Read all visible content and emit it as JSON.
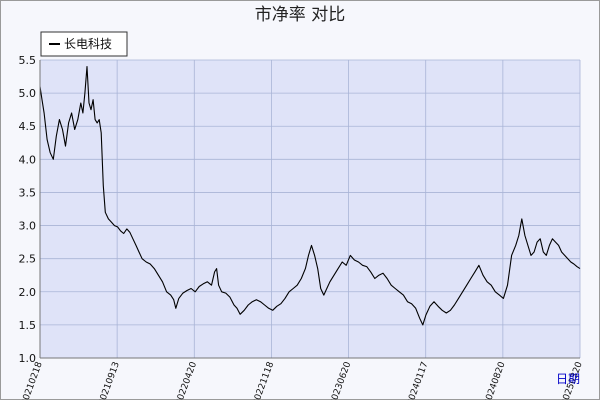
{
  "chart_data": {
    "type": "line",
    "title": "市净率  对比",
    "xlabel": "日期",
    "ylabel": "",
    "ylim": [
      1.0,
      5.5
    ],
    "yticks": [
      "1.0",
      "1.5",
      "2.0",
      "2.5",
      "3.0",
      "3.5",
      "4.0",
      "4.5",
      "5.0",
      "5.5"
    ],
    "xticks": [
      "20210218",
      "20210913",
      "20220420",
      "20221118",
      "20230620",
      "20240117",
      "20240820",
      "20250320"
    ],
    "grid": true,
    "legend_position": "top-left",
    "colors": {
      "plot_bg": "#dfe3f8",
      "line": "#000000",
      "grid": "#a9b4d6"
    },
    "series": [
      {
        "name": "长电科技",
        "points": [
          [
            0,
            5.1
          ],
          [
            0.2,
            4.9
          ],
          [
            0.4,
            4.7
          ],
          [
            0.7,
            4.3
          ],
          [
            1,
            4.1
          ],
          [
            1.3,
            4.0
          ],
          [
            1.6,
            4.35
          ],
          [
            1.9,
            4.6
          ],
          [
            2.2,
            4.45
          ],
          [
            2.5,
            4.2
          ],
          [
            2.8,
            4.55
          ],
          [
            3.1,
            4.7
          ],
          [
            3.4,
            4.45
          ],
          [
            3.7,
            4.6
          ],
          [
            4,
            4.85
          ],
          [
            4.2,
            4.7
          ],
          [
            4.4,
            5.0
          ],
          [
            4.6,
            5.4
          ],
          [
            4.8,
            4.85
          ],
          [
            5.0,
            4.75
          ],
          [
            5.2,
            4.9
          ],
          [
            5.4,
            4.6
          ],
          [
            5.6,
            4.55
          ],
          [
            5.8,
            4.6
          ],
          [
            6.0,
            4.4
          ],
          [
            6.2,
            3.6
          ],
          [
            6.4,
            3.2
          ],
          [
            6.7,
            3.1
          ],
          [
            7.0,
            3.05
          ],
          [
            7.3,
            3.0
          ],
          [
            7.6,
            2.98
          ],
          [
            7.9,
            2.92
          ],
          [
            8.2,
            2.88
          ],
          [
            8.5,
            2.95
          ],
          [
            8.8,
            2.9
          ],
          [
            9.1,
            2.8
          ],
          [
            9.4,
            2.7
          ],
          [
            9.7,
            2.6
          ],
          [
            10.0,
            2.5
          ],
          [
            10.4,
            2.45
          ],
          [
            10.8,
            2.42
          ],
          [
            11.2,
            2.35
          ],
          [
            11.6,
            2.25
          ],
          [
            12.0,
            2.15
          ],
          [
            12.4,
            2.0
          ],
          [
            12.8,
            1.95
          ],
          [
            13.1,
            1.88
          ],
          [
            13.3,
            1.75
          ],
          [
            13.6,
            1.9
          ],
          [
            14.0,
            1.98
          ],
          [
            14.4,
            2.02
          ],
          [
            14.8,
            2.05
          ],
          [
            15.2,
            2.0
          ],
          [
            15.6,
            2.08
          ],
          [
            16.0,
            2.12
          ],
          [
            16.4,
            2.15
          ],
          [
            16.8,
            2.1
          ],
          [
            17.1,
            2.3
          ],
          [
            17.3,
            2.35
          ],
          [
            17.5,
            2.1
          ],
          [
            17.8,
            2.0
          ],
          [
            18.2,
            1.98
          ],
          [
            18.6,
            1.92
          ],
          [
            19.0,
            1.8
          ],
          [
            19.3,
            1.75
          ],
          [
            19.6,
            1.66
          ],
          [
            20.0,
            1.72
          ],
          [
            20.4,
            1.8
          ],
          [
            20.8,
            1.85
          ],
          [
            21.2,
            1.88
          ],
          [
            21.6,
            1.85
          ],
          [
            22.0,
            1.8
          ],
          [
            22.4,
            1.75
          ],
          [
            22.8,
            1.72
          ],
          [
            23.2,
            1.78
          ],
          [
            23.6,
            1.82
          ],
          [
            24.0,
            1.9
          ],
          [
            24.4,
            2.0
          ],
          [
            24.8,
            2.05
          ],
          [
            25.2,
            2.1
          ],
          [
            25.6,
            2.2
          ],
          [
            26.0,
            2.35
          ],
          [
            26.3,
            2.55
          ],
          [
            26.6,
            2.7
          ],
          [
            26.9,
            2.55
          ],
          [
            27.2,
            2.35
          ],
          [
            27.5,
            2.05
          ],
          [
            27.8,
            1.95
          ],
          [
            28.1,
            2.05
          ],
          [
            28.4,
            2.15
          ],
          [
            28.8,
            2.25
          ],
          [
            29.2,
            2.35
          ],
          [
            29.6,
            2.45
          ],
          [
            30.0,
            2.4
          ],
          [
            30.4,
            2.55
          ],
          [
            30.8,
            2.48
          ],
          [
            31.2,
            2.45
          ],
          [
            31.6,
            2.4
          ],
          [
            32.0,
            2.38
          ],
          [
            32.4,
            2.3
          ],
          [
            32.8,
            2.2
          ],
          [
            33.2,
            2.25
          ],
          [
            33.6,
            2.28
          ],
          [
            34.0,
            2.2
          ],
          [
            34.4,
            2.1
          ],
          [
            34.8,
            2.05
          ],
          [
            35.2,
            2.0
          ],
          [
            35.6,
            1.95
          ],
          [
            36.0,
            1.85
          ],
          [
            36.4,
            1.82
          ],
          [
            36.8,
            1.75
          ],
          [
            37.2,
            1.6
          ],
          [
            37.5,
            1.5
          ],
          [
            37.8,
            1.65
          ],
          [
            38.2,
            1.78
          ],
          [
            38.6,
            1.85
          ],
          [
            39.0,
            1.78
          ],
          [
            39.4,
            1.72
          ],
          [
            39.8,
            1.68
          ],
          [
            40.2,
            1.72
          ],
          [
            40.6,
            1.8
          ],
          [
            41.0,
            1.9
          ],
          [
            41.4,
            2.0
          ],
          [
            41.8,
            2.1
          ],
          [
            42.2,
            2.2
          ],
          [
            42.6,
            2.3
          ],
          [
            43.0,
            2.4
          ],
          [
            43.4,
            2.25
          ],
          [
            43.8,
            2.15
          ],
          [
            44.2,
            2.1
          ],
          [
            44.6,
            2.0
          ],
          [
            45.0,
            1.95
          ],
          [
            45.4,
            1.9
          ],
          [
            45.8,
            2.1
          ],
          [
            46.2,
            2.55
          ],
          [
            46.6,
            2.7
          ],
          [
            46.9,
            2.85
          ],
          [
            47.2,
            3.1
          ],
          [
            47.5,
            2.85
          ],
          [
            47.8,
            2.7
          ],
          [
            48.1,
            2.55
          ],
          [
            48.4,
            2.6
          ],
          [
            48.7,
            2.75
          ],
          [
            49.0,
            2.8
          ],
          [
            49.3,
            2.6
          ],
          [
            49.6,
            2.55
          ],
          [
            49.9,
            2.7
          ],
          [
            50.2,
            2.8
          ],
          [
            50.5,
            2.75
          ],
          [
            50.8,
            2.7
          ],
          [
            51.1,
            2.6
          ],
          [
            51.4,
            2.55
          ],
          [
            51.7,
            2.5
          ],
          [
            52.0,
            2.45
          ],
          [
            52.3,
            2.42
          ],
          [
            52.6,
            2.38
          ],
          [
            52.9,
            2.35
          ]
        ]
      }
    ]
  }
}
